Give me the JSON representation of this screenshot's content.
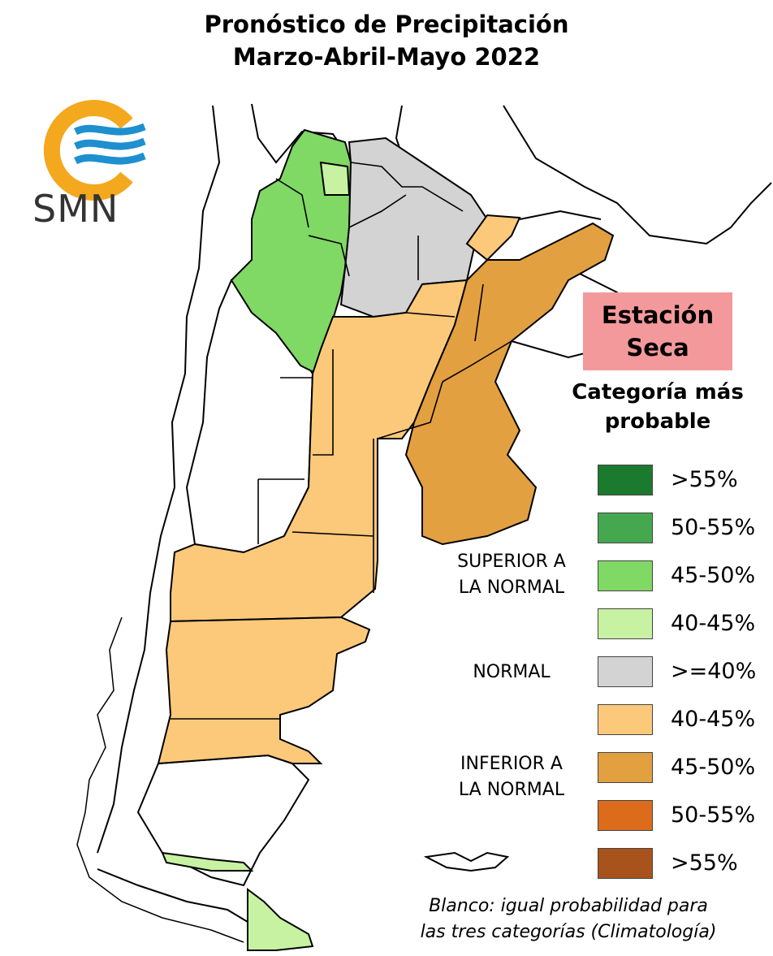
{
  "header": {
    "title_line1": "Pronóstico de Precipitación",
    "title_line2": "Marzo-Abril-Mayo 2022"
  },
  "logo": {
    "text": "SMN",
    "icon": "smn-logo-sun-waves",
    "colors": [
      "#f4a81d",
      "#1e8fcf"
    ]
  },
  "badge": {
    "line1": "Estación",
    "line2": "Seca",
    "color": "#f4999b"
  },
  "legend": {
    "heading_line1": "Categoría más",
    "heading_line2": "probable",
    "groups": {
      "superior_line1": "SUPERIOR A",
      "superior_line2": "LA NORMAL",
      "normal": "NORMAL",
      "inferior_line1": "INFERIOR A",
      "inferior_line2": "LA NORMAL"
    },
    "items": [
      {
        "label": ">55%",
        "color": "#1b7a2e"
      },
      {
        "label": "50-55%",
        "color": "#45a84f"
      },
      {
        "label": "45-50%",
        "color": "#80d865"
      },
      {
        "label": "40-45%",
        "color": "#c7f2a1"
      },
      {
        "label": ">=40%",
        "color": "#d3d3d3"
      },
      {
        "label": "40-45%",
        "color": "#fcc97a"
      },
      {
        "label": "45-50%",
        "color": "#e3a040"
      },
      {
        "label": "50-55%",
        "color": "#dc6c1c"
      },
      {
        "label": ">55%",
        "color": "#a8531b"
      }
    ]
  },
  "footnote": {
    "line1": "Blanco: igual probabilidad para",
    "line2": "las tres categorías (Climatología)"
  }
}
